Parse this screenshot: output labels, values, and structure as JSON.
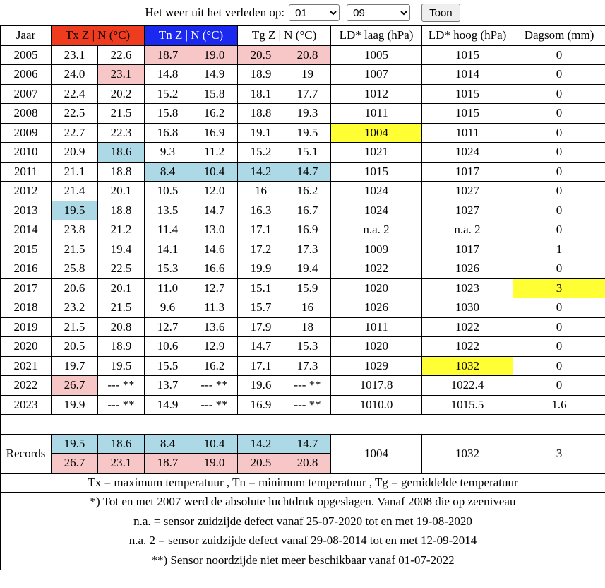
{
  "topbar": {
    "label": "Het weer uit het verleden op:",
    "day": "01",
    "month": "09",
    "button": "Toon"
  },
  "headers": {
    "year": "Jaar",
    "tx": "Tx Z | N (°C)",
    "tn": "Tn Z | N (°C)",
    "tg": "Tg Z | N (°C)",
    "ld_low": "LD* laag (hPa)",
    "ld_high": "LD* hoog (hPa)",
    "rain": "Dagsom (mm)"
  },
  "colors": {
    "red": "#f03c1e",
    "blue": "#1a28f0",
    "pink": "#f7c6c7",
    "lightblue": "#add8e6",
    "yellow": "#ffff33"
  },
  "rows": [
    [
      "2005",
      "23.1",
      "22.6",
      "18.7",
      "19.0",
      "20.5",
      "20.8",
      "1005",
      "1015",
      "0"
    ],
    [
      "2006",
      "24.0",
      "23.1",
      "14.8",
      "14.9",
      "18.9",
      "19",
      "1007",
      "1014",
      "0"
    ],
    [
      "2007",
      "22.4",
      "20.2",
      "15.2",
      "15.8",
      "18.1",
      "17.7",
      "1012",
      "1015",
      "0"
    ],
    [
      "2008",
      "22.5",
      "21.5",
      "15.8",
      "16.2",
      "18.8",
      "19.3",
      "1011",
      "1015",
      "0"
    ],
    [
      "2009",
      "22.7",
      "22.3",
      "16.8",
      "16.9",
      "19.1",
      "19.5",
      "1004",
      "1011",
      "0"
    ],
    [
      "2010",
      "20.9",
      "18.6",
      "9.3",
      "11.2",
      "15.2",
      "15.1",
      "1021",
      "1024",
      "0"
    ],
    [
      "2011",
      "21.1",
      "18.8",
      "8.4",
      "10.4",
      "14.2",
      "14.7",
      "1015",
      "1017",
      "0"
    ],
    [
      "2012",
      "21.4",
      "20.1",
      "10.5",
      "12.0",
      "16",
      "16.2",
      "1024",
      "1027",
      "0"
    ],
    [
      "2013",
      "19.5",
      "18.8",
      "13.5",
      "14.7",
      "16.3",
      "16.7",
      "1024",
      "1027",
      "0"
    ],
    [
      "2014",
      "23.8",
      "21.2",
      "11.4",
      "13.0",
      "17.1",
      "16.9",
      "n.a. 2",
      "n.a. 2",
      "0"
    ],
    [
      "2015",
      "21.5",
      "19.4",
      "14.1",
      "14.6",
      "17.2",
      "17.3",
      "1009",
      "1017",
      "1"
    ],
    [
      "2016",
      "25.8",
      "22.5",
      "15.3",
      "16.6",
      "19.9",
      "19.4",
      "1022",
      "1026",
      "0"
    ],
    [
      "2017",
      "20.6",
      "20.1",
      "11.0",
      "12.7",
      "15.1",
      "15.9",
      "1020",
      "1023",
      "3"
    ],
    [
      "2018",
      "23.2",
      "21.5",
      "9.6",
      "11.3",
      "15.7",
      "16",
      "1026",
      "1030",
      "0"
    ],
    [
      "2019",
      "21.5",
      "20.8",
      "12.7",
      "13.6",
      "17.9",
      "18",
      "1011",
      "1022",
      "0"
    ],
    [
      "2020",
      "20.5",
      "18.9",
      "10.6",
      "12.9",
      "14.7",
      "15.3",
      "1020",
      "1022",
      "0"
    ],
    [
      "2021",
      "19.7",
      "19.5",
      "15.5",
      "16.2",
      "17.1",
      "17.3",
      "1029",
      "1032",
      "0"
    ],
    [
      "2022",
      "26.7",
      "--- **",
      "13.7",
      "--- **",
      "19.6",
      "--- **",
      "1017.8",
      "1022.4",
      "0"
    ],
    [
      "2023",
      "19.9",
      "--- **",
      "14.9",
      "--- **",
      "16.9",
      "--- **",
      "1010.0",
      "1015.5",
      "1.6"
    ]
  ],
  "highlights": [
    {
      "row": 0,
      "col": 3,
      "c": "pink"
    },
    {
      "row": 0,
      "col": 4,
      "c": "pink"
    },
    {
      "row": 0,
      "col": 5,
      "c": "pink"
    },
    {
      "row": 0,
      "col": 6,
      "c": "pink"
    },
    {
      "row": 1,
      "col": 2,
      "c": "pink"
    },
    {
      "row": 4,
      "col": 7,
      "c": "yellow"
    },
    {
      "row": 5,
      "col": 2,
      "c": "lightblue"
    },
    {
      "row": 6,
      "col": 3,
      "c": "lightblue"
    },
    {
      "row": 6,
      "col": 4,
      "c": "lightblue"
    },
    {
      "row": 6,
      "col": 5,
      "c": "lightblue"
    },
    {
      "row": 6,
      "col": 6,
      "c": "lightblue"
    },
    {
      "row": 8,
      "col": 1,
      "c": "lightblue"
    },
    {
      "row": 12,
      "col": 9,
      "c": "yellow"
    },
    {
      "row": 16,
      "col": 8,
      "c": "yellow"
    },
    {
      "row": 17,
      "col": 1,
      "c": "pink"
    }
  ],
  "records": {
    "label": "Records",
    "low": [
      "19.5",
      "18.6",
      "8.4",
      "10.4",
      "14.2",
      "14.7"
    ],
    "high": [
      "26.7",
      "23.1",
      "18.7",
      "19.0",
      "20.5",
      "20.8"
    ],
    "ld_low": "1004",
    "ld_high": "1032",
    "rain": "3"
  },
  "footnotes": [
    "Tx = maximum temperatuur , Tn = minimum temperatuur , Tg = gemiddelde temperatuur",
    "*) Tot en met 2007 werd de absolute luchtdruk opgeslagen. Vanaf 2008 die op zeeniveau",
    "n.a. = sensor zuidzijde defect vanaf 25-07-2020 tot en met 19-08-2020",
    "n.a. 2 = sensor zuidzijde defect vanaf 29-08-2014 tot en met 12-09-2014",
    "**) Sensor noordzijde niet meer beschikbaar vanaf 01-07-2022"
  ]
}
